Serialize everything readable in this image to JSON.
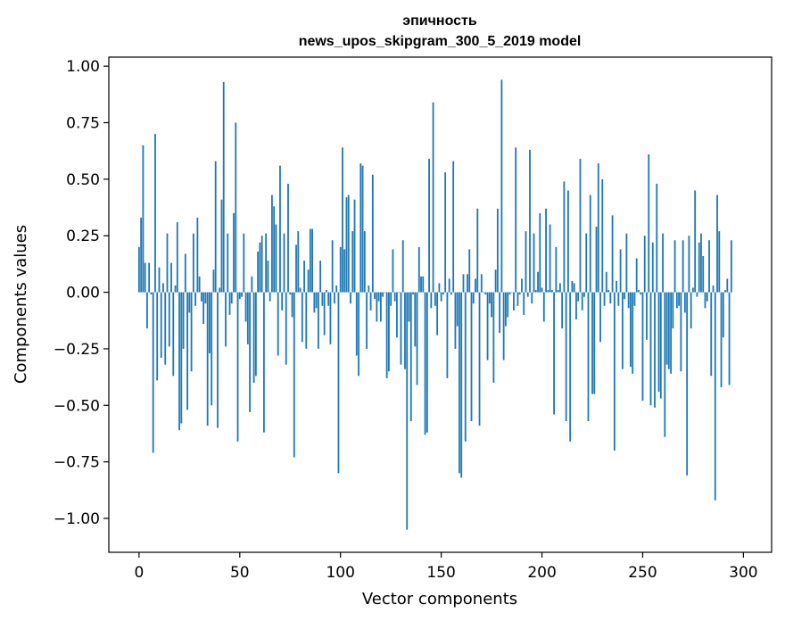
{
  "chart_data": {
    "type": "bar",
    "title": "эпичность",
    "subtitle": "news_upos_skipgram_300_5_2019 model",
    "xlabel": "Vector components",
    "ylabel": "Components values",
    "xlim": [
      -15,
      314
    ],
    "ylim": [
      -1.15,
      1.04
    ],
    "x_ticks": [
      0,
      50,
      100,
      150,
      200,
      250,
      300
    ],
    "x_tick_labels": [
      "0",
      "50",
      "100",
      "150",
      "200",
      "250",
      "300"
    ],
    "y_ticks": [
      1.0,
      0.75,
      0.5,
      0.25,
      0.0,
      -0.25,
      -0.5,
      -0.75,
      -1.0
    ],
    "y_tick_labels": [
      "1.00",
      "0.75",
      "0.50",
      "0.25",
      "0.00",
      "−0.25",
      "−0.50",
      "−0.75",
      "−1.00"
    ],
    "bar_color": "#1f77b4",
    "grid": false,
    "values": [
      0.2,
      0.33,
      0.65,
      0.13,
      -0.16,
      0.13,
      -0.01,
      -0.71,
      0.7,
      -0.39,
      0.11,
      -0.29,
      0.04,
      -0.32,
      0.26,
      -0.24,
      0.13,
      -0.37,
      0.03,
      0.31,
      -0.61,
      -0.58,
      -0.25,
      0.17,
      -0.52,
      -0.09,
      -0.35,
      0.26,
      -0.06,
      0.33,
      0.07,
      -0.04,
      -0.14,
      -0.05,
      -0.59,
      -0.27,
      -0.5,
      0.1,
      0.58,
      -0.6,
      0.02,
      0.41,
      0.93,
      -0.24,
      0.26,
      -0.1,
      -0.05,
      0.35,
      0.75,
      -0.66,
      -0.03,
      -0.02,
      0.26,
      -0.13,
      -0.23,
      -0.53,
      0.07,
      -0.4,
      -0.37,
      0.18,
      0.22,
      0.25,
      -0.62,
      0.26,
      0.14,
      -0.04,
      0.43,
      0.38,
      0.3,
      -0.28,
      0.56,
      -0.08,
      0.26,
      -0.32,
      0.48,
      -0.01,
      -0.11,
      -0.73,
      0.21,
      0.27,
      0.02,
      -0.22,
      0.14,
      -0.25,
      0.1,
      0.28,
      0.28,
      -0.09,
      -0.07,
      -0.25,
      0.14,
      -0.06,
      -0.19,
      0.01,
      -0.06,
      -0.23,
      0.23,
      -0.05,
      0.03,
      -0.8,
      0.2,
      0.64,
      0.19,
      0.42,
      0.43,
      -0.05,
      0.27,
      0.41,
      -0.28,
      -0.37,
      0.57,
      0.56,
      0.27,
      -0.25,
      0.03,
      -0.08,
      0.52,
      -0.03,
      -0.13,
      -0.04,
      -0.13,
      -0.02,
      0.0,
      -0.38,
      -0.35,
      -0.06,
      0.19,
      -0.04,
      -0.2,
      0.0,
      -0.32,
      0.23,
      -0.34,
      -1.05,
      -0.13,
      -0.57,
      -0.01,
      -0.24,
      -0.41,
      0.2,
      0.07,
      0.07,
      -0.63,
      -0.62,
      0.59,
      -0.07,
      0.84,
      -0.06,
      -0.19,
      0.04,
      -0.04,
      -0.01,
      0.53,
      -0.38,
      0.06,
      -0.01,
      0.58,
      -0.25,
      -0.15,
      -0.8,
      -0.82,
      0.08,
      -0.66,
      0.08,
      0.19,
      -0.57,
      -0.05,
      0.06,
      0.37,
      -0.59,
      0.08,
      0.0,
      -0.01,
      -0.3,
      -0.05,
      -0.11,
      -0.4,
      0.1,
      0.37,
      -0.18,
      0.94,
      -0.3,
      -0.15,
      -0.11,
      -0.01,
      0.0,
      -0.08,
      0.64,
      -0.06,
      -0.01,
      0.06,
      -0.1,
      0.27,
      -0.02,
      0.63,
      -0.05,
      0.26,
      0.01,
      0.09,
      0.35,
      0.02,
      -0.13,
      0.37,
      0.01,
      0.3,
      0.01,
      -0.54,
      0.2,
      0.01,
      0.04,
      -0.16,
      0.49,
      -0.57,
      0.45,
      -0.66,
      0.05,
      0.04,
      -0.12,
      -0.04,
      0.59,
      -0.08,
      -0.02,
      0.26,
      -0.57,
      0.43,
      -0.45,
      -0.45,
      0.29,
      0.57,
      -0.22,
      0.5,
      -0.06,
      0.09,
      0.01,
      -0.05,
      0.34,
      -0.7,
      0.05,
      -0.06,
      0.19,
      -0.34,
      -0.03,
      0.26,
      -0.07,
      -0.33,
      -0.36,
      -0.06,
      0.15,
      0.01,
      -0.01,
      -0.48,
      0.25,
      -0.21,
      0.61,
      -0.5,
      0.22,
      -0.51,
      0.48,
      -0.44,
      -0.47,
      0.26,
      -0.64,
      -0.32,
      -0.34,
      -0.36,
      -0.16,
      0.23,
      -0.07,
      -0.06,
      -0.35,
      0.23,
      -0.09,
      -0.81,
      0.25,
      -0.16,
      0.02,
      0.45,
      -0.02,
      0.22,
      0.26,
      0.16,
      -0.07,
      -0.04,
      0.23,
      -0.37,
      0.03,
      -0.92,
      0.43,
      0.27,
      -0.42,
      -0.2,
      0.01,
      0.06,
      -0.41,
      0.23
    ]
  }
}
